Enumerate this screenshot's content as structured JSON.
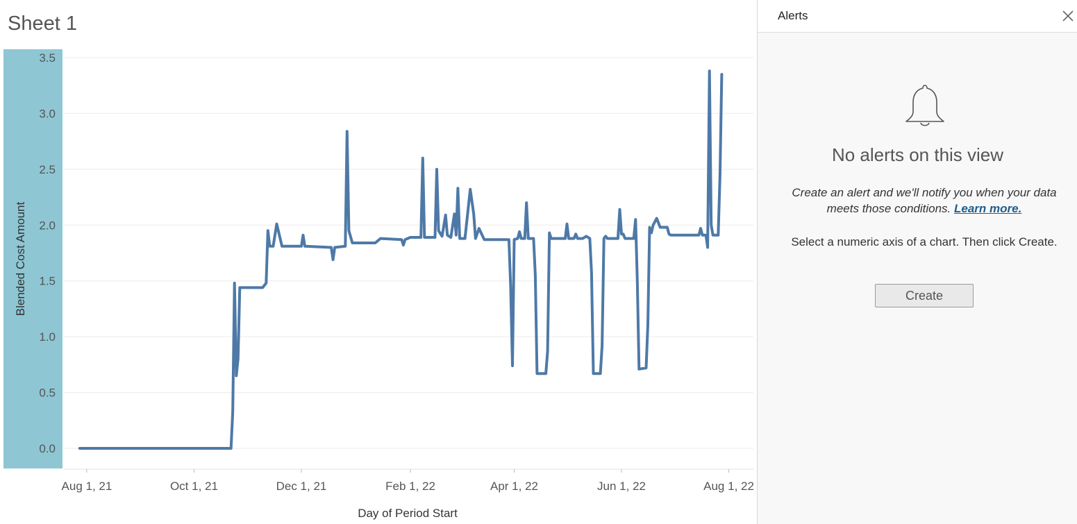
{
  "sheet": {
    "title": "Sheet 1"
  },
  "chart_data": {
    "type": "line",
    "title": "",
    "xlabel": "Day of Period Start",
    "ylabel": "Blended Cost Amount",
    "x_ticks": [
      "Aug 1, 21",
      "Oct 1, 21",
      "Dec 1, 21",
      "Feb 1, 22",
      "Apr 1, 22",
      "Jun 1, 22",
      "Aug 1, 22"
    ],
    "y_ticks": [
      "0.0",
      "0.5",
      "1.0",
      "1.5",
      "2.0",
      "2.5",
      "3.0",
      "3.5"
    ],
    "ylim": [
      0,
      3.5
    ],
    "xlim": [
      "2021-07-19",
      "2022-08-15"
    ],
    "grid": true,
    "line_color": "#4e79a7",
    "series": [
      {
        "points": [
          [
            "2021-07-28",
            0
          ],
          [
            "2021-10-22",
            0
          ],
          [
            "2021-10-23",
            0.33
          ],
          [
            "2021-10-24",
            1.48
          ],
          [
            "2021-10-25",
            0.65
          ],
          [
            "2021-10-26",
            0.8
          ],
          [
            "2021-10-27",
            1.44
          ],
          [
            "2021-11-09",
            1.44
          ],
          [
            "2021-11-11",
            1.48
          ],
          [
            "2021-11-12",
            1.95
          ],
          [
            "2021-11-13",
            1.81
          ],
          [
            "2021-11-15",
            1.81
          ],
          [
            "2021-11-17",
            2.01
          ],
          [
            "2021-11-20",
            1.81
          ],
          [
            "2021-12-01",
            1.81
          ],
          [
            "2021-12-02",
            1.91
          ],
          [
            "2021-12-03",
            1.81
          ],
          [
            "2021-12-18",
            1.8
          ],
          [
            "2021-12-19",
            1.69
          ],
          [
            "2021-12-20",
            1.8
          ],
          [
            "2021-12-26",
            1.81
          ],
          [
            "2021-12-27",
            2.84
          ],
          [
            "2021-12-28",
            1.95
          ],
          [
            "2021-12-30",
            1.84
          ],
          [
            "2022-01-12",
            1.84
          ],
          [
            "2022-01-15",
            1.88
          ],
          [
            "2022-01-27",
            1.87
          ],
          [
            "2022-01-28",
            1.82
          ],
          [
            "2022-01-29",
            1.87
          ],
          [
            "2022-02-01",
            1.89
          ],
          [
            "2022-02-07",
            1.89
          ],
          [
            "2022-02-08",
            2.6
          ],
          [
            "2022-02-09",
            1.89
          ],
          [
            "2022-02-15",
            1.89
          ],
          [
            "2022-02-16",
            2.5
          ],
          [
            "2022-02-17",
            1.95
          ],
          [
            "2022-02-19",
            1.9
          ],
          [
            "2022-02-21",
            2.09
          ],
          [
            "2022-02-22",
            1.91
          ],
          [
            "2022-02-24",
            1.89
          ],
          [
            "2022-02-26",
            2.1
          ],
          [
            "2022-02-27",
            1.91
          ],
          [
            "2022-02-28",
            2.33
          ],
          [
            "2022-03-01",
            1.88
          ],
          [
            "2022-03-04",
            1.88
          ],
          [
            "2022-03-07",
            2.32
          ],
          [
            "2022-03-09",
            2.1
          ],
          [
            "2022-03-10",
            1.88
          ],
          [
            "2022-03-12",
            1.97
          ],
          [
            "2022-03-15",
            1.87
          ],
          [
            "2022-03-29",
            1.87
          ],
          [
            "2022-03-30",
            1.45
          ],
          [
            "2022-03-31",
            0.74
          ],
          [
            "2022-04-01",
            1.87
          ],
          [
            "2022-04-03",
            1.88
          ],
          [
            "2022-04-04",
            1.94
          ],
          [
            "2022-04-05",
            1.88
          ],
          [
            "2022-04-07",
            1.88
          ],
          [
            "2022-04-08",
            2.2
          ],
          [
            "2022-04-09",
            1.88
          ],
          [
            "2022-04-12",
            1.88
          ],
          [
            "2022-04-13",
            1.55
          ],
          [
            "2022-04-14",
            0.67
          ],
          [
            "2022-04-19",
            0.67
          ],
          [
            "2022-04-20",
            0.87
          ],
          [
            "2022-04-21",
            1.93
          ],
          [
            "2022-04-22",
            1.88
          ],
          [
            "2022-04-30",
            1.88
          ],
          [
            "2022-05-01",
            2.01
          ],
          [
            "2022-05-02",
            1.88
          ],
          [
            "2022-05-05",
            1.88
          ],
          [
            "2022-05-06",
            1.92
          ],
          [
            "2022-05-07",
            1.88
          ],
          [
            "2022-05-10",
            1.88
          ],
          [
            "2022-05-12",
            1.9
          ],
          [
            "2022-05-14",
            1.88
          ],
          [
            "2022-05-15",
            1.57
          ],
          [
            "2022-05-16",
            0.67
          ],
          [
            "2022-05-20",
            0.67
          ],
          [
            "2022-05-21",
            0.92
          ],
          [
            "2022-05-22",
            1.88
          ],
          [
            "2022-05-23",
            1.9
          ],
          [
            "2022-05-24",
            1.88
          ],
          [
            "2022-05-30",
            1.88
          ],
          [
            "2022-05-31",
            2.14
          ],
          [
            "2022-06-01",
            1.92
          ],
          [
            "2022-06-02",
            1.92
          ],
          [
            "2022-06-03",
            1.88
          ],
          [
            "2022-06-08",
            1.88
          ],
          [
            "2022-06-09",
            2.05
          ],
          [
            "2022-06-10",
            1.5
          ],
          [
            "2022-06-11",
            0.71
          ],
          [
            "2022-06-15",
            0.72
          ],
          [
            "2022-06-16",
            1.11
          ],
          [
            "2022-06-17",
            1.98
          ],
          [
            "2022-06-18",
            1.93
          ],
          [
            "2022-06-19",
            2.0
          ],
          [
            "2022-06-21",
            2.06
          ],
          [
            "2022-06-23",
            1.98
          ],
          [
            "2022-06-27",
            1.98
          ],
          [
            "2022-06-28",
            1.92
          ],
          [
            "2022-06-29",
            1.91
          ],
          [
            "2022-07-15",
            1.91
          ],
          [
            "2022-07-16",
            1.97
          ],
          [
            "2022-07-17",
            1.91
          ],
          [
            "2022-07-19",
            1.91
          ],
          [
            "2022-07-20",
            1.8
          ],
          [
            "2022-07-21",
            3.38
          ],
          [
            "2022-07-22",
            2.0
          ],
          [
            "2022-07-23",
            1.91
          ],
          [
            "2022-07-26",
            1.91
          ],
          [
            "2022-07-27",
            2.45
          ],
          [
            "2022-07-28",
            3.35
          ]
        ]
      }
    ]
  },
  "panel": {
    "title": "Alerts",
    "close_icon": "close-icon",
    "bell_icon": "bell-icon",
    "heading": "No alerts on this view",
    "desc_text": "Create an alert and we'll notify you when your data meets those conditions.",
    "learn_more": "Learn more.",
    "instruction": "Select a numeric axis of a chart. Then click Create.",
    "create_label": "Create"
  }
}
